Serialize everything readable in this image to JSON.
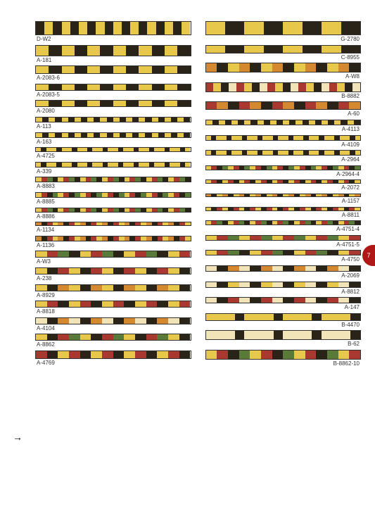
{
  "page_number": "7",
  "colors": {
    "yellow": "#e8c84a",
    "dark": "#2a2418",
    "cream": "#f0e4b8",
    "brown": "#9a6a2e",
    "red": "#a83830",
    "green": "#5a7a3a",
    "orange": "#d48830",
    "tan": "#c8a860",
    "black": "#1a1a1a",
    "white": "#f8f4e8"
  },
  "left_column": [
    {
      "code": "D-W2",
      "height": 20,
      "pattern": "checker",
      "colors": [
        "#2a2418",
        "#e8c84a"
      ]
    },
    {
      "code": "A-181",
      "height": 16,
      "pattern": "squares",
      "colors": [
        "#e8c84a",
        "#2a2418"
      ]
    },
    {
      "code": "A-2083-6",
      "height": 12,
      "pattern": "squares",
      "colors": [
        "#e8c84a",
        "#2a2418"
      ]
    },
    {
      "code": "A-2083-5",
      "height": 10,
      "pattern": "squares",
      "colors": [
        "#e8c84a",
        "#2a2418"
      ]
    },
    {
      "code": "A-2080",
      "height": 10,
      "pattern": "squares",
      "colors": [
        "#e8c84a",
        "#2a2418"
      ]
    },
    {
      "code": "A-113",
      "height": 8,
      "pattern": "dashes",
      "colors": [
        "#e8c84a",
        "#2a2418"
      ]
    },
    {
      "code": "A-163",
      "height": 8,
      "pattern": "dashes",
      "colors": [
        "#e8c84a",
        "#2a2418"
      ]
    },
    {
      "code": "A-4725",
      "height": 7,
      "pattern": "dots",
      "colors": [
        "#e8c84a",
        "#2a2418"
      ]
    },
    {
      "code": "A-339",
      "height": 8,
      "pattern": "dots",
      "colors": [
        "#e8c84a",
        "#2a2418"
      ]
    },
    {
      "code": "A-8883",
      "height": 8,
      "pattern": "multi",
      "colors": [
        "#e8c84a",
        "#a83830",
        "#5a7a3a",
        "#2a2418"
      ]
    },
    {
      "code": "A-8885",
      "height": 8,
      "pattern": "multi",
      "colors": [
        "#e8c84a",
        "#a83830",
        "#2a2418",
        "#5a7a3a"
      ]
    },
    {
      "code": "A-8886",
      "height": 7,
      "pattern": "multi",
      "colors": [
        "#e8c84a",
        "#a83830",
        "#5a7a3a",
        "#2a2418"
      ]
    },
    {
      "code": "A-1134",
      "height": 6,
      "pattern": "multi",
      "colors": [
        "#d48830",
        "#2a2418",
        "#a83830",
        "#e8c84a"
      ]
    },
    {
      "code": "A-1136",
      "height": 8,
      "pattern": "multi",
      "colors": [
        "#d48830",
        "#2a2418",
        "#a83830",
        "#e8c84a"
      ]
    },
    {
      "code": "A-W3",
      "height": 10,
      "pattern": "blocks",
      "colors": [
        "#e8c84a",
        "#a83830",
        "#5a7a3a",
        "#2a2418"
      ]
    },
    {
      "code": "A-238",
      "height": 10,
      "pattern": "blocks",
      "colors": [
        "#e8c84a",
        "#2a2418",
        "#a83830"
      ]
    },
    {
      "code": "A-8929",
      "height": 10,
      "pattern": "blocks",
      "colors": [
        "#e8c84a",
        "#2a2418",
        "#d48830"
      ]
    },
    {
      "code": "A-8818",
      "height": 10,
      "pattern": "blocks",
      "colors": [
        "#e8c84a",
        "#a83830",
        "#2a2418"
      ]
    },
    {
      "code": "A-4104",
      "height": 10,
      "pattern": "blocks",
      "colors": [
        "#f0e4b8",
        "#2a2418",
        "#d48830"
      ]
    },
    {
      "code": "A-8862",
      "height": 10,
      "pattern": "blocks",
      "colors": [
        "#e8c84a",
        "#2a2418",
        "#a83830",
        "#5a7a3a"
      ]
    },
    {
      "code": "A-4769",
      "height": 12,
      "pattern": "blocks",
      "colors": [
        "#a83830",
        "#2a2418",
        "#e8c84a"
      ]
    }
  ],
  "right_column": [
    {
      "code": "G-2780",
      "height": 20,
      "pattern": "diamonds",
      "colors": [
        "#e8c84a",
        "#2a2418"
      ]
    },
    {
      "code": "C-8955",
      "height": 12,
      "pattern": "diamonds",
      "colors": [
        "#e8c84a",
        "#2a2418",
        "#a83830"
      ]
    },
    {
      "code": "A-W8",
      "height": 14,
      "pattern": "blocks",
      "colors": [
        "#d48830",
        "#2a2418",
        "#e8c84a"
      ]
    },
    {
      "code": "B-8882",
      "height": 14,
      "pattern": "stripes",
      "colors": [
        "#a83830",
        "#e8c84a",
        "#2a2418",
        "#f0e4b8"
      ]
    },
    {
      "code": "A-60",
      "height": 12,
      "pattern": "blocks",
      "colors": [
        "#a83830",
        "#d48830",
        "#2a2418"
      ]
    },
    {
      "code": "A-4113",
      "height": 8,
      "pattern": "dashes",
      "colors": [
        "#e8c84a",
        "#2a2418"
      ]
    },
    {
      "code": "A-4109",
      "height": 8,
      "pattern": "dots",
      "colors": [
        "#e8c84a",
        "#2a2418"
      ]
    },
    {
      "code": "A-2964",
      "height": 8,
      "pattern": "dots",
      "colors": [
        "#e8c84a",
        "#2a2418"
      ]
    },
    {
      "code": "A-2964-4",
      "height": 7,
      "pattern": "multi",
      "colors": [
        "#e8c84a",
        "#a83830",
        "#2a2418",
        "#5a7a3a"
      ]
    },
    {
      "code": "A-2072",
      "height": 6,
      "pattern": "multi",
      "colors": [
        "#e8c84a",
        "#a83830",
        "#2a2418"
      ]
    },
    {
      "code": "A-1157",
      "height": 5,
      "pattern": "multi",
      "colors": [
        "#d48830",
        "#2a2418",
        "#e8c84a"
      ]
    },
    {
      "code": "A-8811",
      "height": 6,
      "pattern": "multi",
      "colors": [
        "#e8c84a",
        "#2a2418",
        "#a83830"
      ]
    },
    {
      "code": "A-4751-4",
      "height": 7,
      "pattern": "multi",
      "colors": [
        "#e8c84a",
        "#a83830",
        "#5a7a3a",
        "#2a2418"
      ]
    },
    {
      "code": "A-4751-5",
      "height": 8,
      "pattern": "blocks",
      "colors": [
        "#e8c84a",
        "#a83830",
        "#5a7a3a"
      ]
    },
    {
      "code": "A-4750",
      "height": 8,
      "pattern": "blocks",
      "colors": [
        "#e8c84a",
        "#a83830",
        "#5a7a3a",
        "#2a2418"
      ]
    },
    {
      "code": "A-2069",
      "height": 9,
      "pattern": "blocks",
      "colors": [
        "#f0e4b8",
        "#2a2418",
        "#d48830"
      ]
    },
    {
      "code": "A-8812",
      "height": 9,
      "pattern": "blocks",
      "colors": [
        "#f0e4b8",
        "#2a2418",
        "#e8c84a"
      ]
    },
    {
      "code": "A-147",
      "height": 9,
      "pattern": "blocks",
      "colors": [
        "#f0e4b8",
        "#2a2418",
        "#a83830"
      ]
    },
    {
      "code": "B-4470",
      "height": 11,
      "pattern": "bars",
      "colors": [
        "#e8c84a",
        "#2a2418"
      ]
    },
    {
      "code": "B-62",
      "height": 14,
      "pattern": "bars",
      "colors": [
        "#f0e4b8",
        "#2a2418"
      ]
    },
    {
      "code": "B-8862-10",
      "height": 14,
      "pattern": "blocks",
      "colors": [
        "#e8c84a",
        "#a83830",
        "#2a2418",
        "#5a7a3a"
      ]
    }
  ]
}
